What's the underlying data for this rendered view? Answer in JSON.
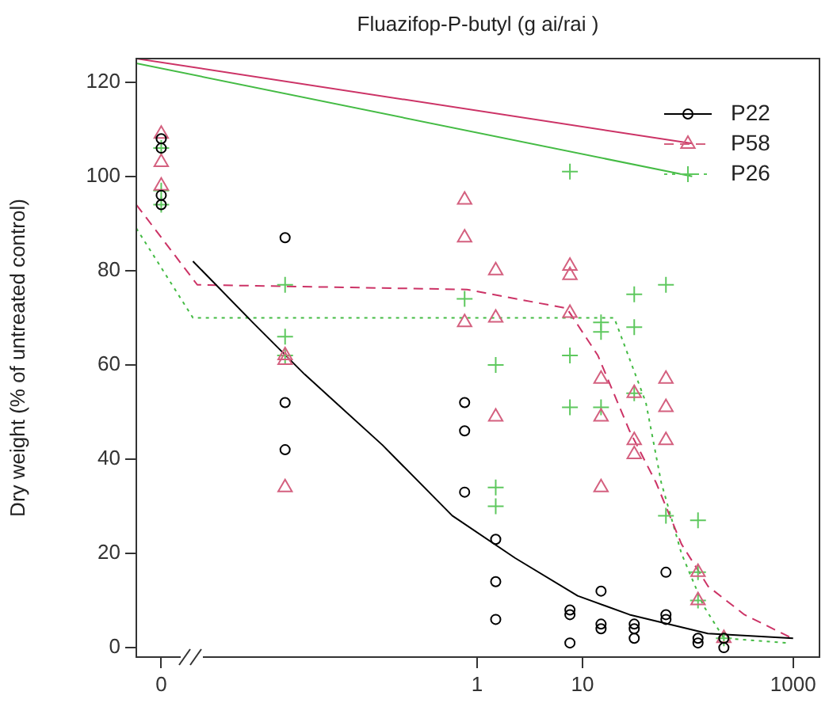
{
  "chart_data": {
    "type": "scatter",
    "title": "Fluazifop-P-butyl (g ai/rai )",
    "ylabel": "Dry weight (% of untreated control)",
    "log": "x",
    "grid": false,
    "legend": "top right",
    "xlim": [
      0.00058,
      1780
    ],
    "xticks": [
      {
        "value": 0.001,
        "label": "0"
      },
      1,
      10,
      1000
    ],
    "ylim": [
      -2,
      125
    ],
    "yticks": [
      0,
      20,
      40,
      60,
      80,
      100,
      120
    ],
    "series": [
      {
        "name": "P22",
        "marker": "circle",
        "line_style": "solid",
        "color": "#000000",
        "x": [
          0.001,
          0.001,
          0.001,
          0.001,
          0.015,
          0.015,
          0.015,
          0.76,
          0.76,
          0.76,
          1.5,
          1.5,
          1.5,
          7.6,
          7.6,
          7.6,
          15,
          15,
          15,
          31,
          31,
          31,
          62,
          62,
          62,
          125,
          125,
          220,
          220
        ],
        "values": [
          108,
          106,
          96,
          94,
          87,
          52,
          42,
          52,
          46,
          33,
          23,
          14,
          6,
          8,
          7,
          1,
          12,
          5,
          4,
          5,
          4,
          2,
          16,
          7,
          6,
          2,
          1,
          2,
          0
        ]
      },
      {
        "name": "P58",
        "marker": "triangle",
        "line_style": "dashed",
        "color": "#d4607f",
        "x": [
          0.001,
          0.001,
          0.001,
          0.015,
          0.015,
          0.015,
          0.76,
          0.76,
          0.76,
          1.5,
          1.5,
          1.5,
          7.6,
          7.6,
          7.6,
          15,
          15,
          15,
          31,
          31,
          31,
          62,
          62,
          62,
          125,
          125,
          220
        ],
        "values": [
          109,
          103,
          98,
          62,
          61,
          34,
          95,
          87,
          69,
          80,
          70,
          49,
          81,
          79,
          71,
          57,
          49,
          34,
          54,
          44,
          41,
          57,
          51,
          44,
          16,
          10,
          2
        ]
      },
      {
        "name": "P26",
        "marker": "cross",
        "line_style": "dotted",
        "color": "#5ec85e",
        "x": [
          0.001,
          0.001,
          0.001,
          0.015,
          0.015,
          0.015,
          0.76,
          1.5,
          1.5,
          1.5,
          7.6,
          7.6,
          7.6,
          15,
          15,
          15,
          31,
          31,
          31,
          62,
          62,
          125,
          125,
          125,
          220
        ],
        "values": [
          106,
          97,
          94,
          77,
          66,
          62,
          74,
          60,
          34,
          30,
          101,
          62,
          51,
          69,
          67,
          51,
          75,
          68,
          54,
          77,
          28,
          27,
          16,
          10,
          2
        ]
      },
      {
        "type": "line",
        "marker": "none",
        "line_style": "solid",
        "color": "#000000",
        "x": [
          0.002,
          0.0074,
          0.023,
          0.126,
          0.58,
          2.3,
          9,
          28,
          155,
          1000
        ],
        "values": [
          82,
          69,
          58,
          43,
          28,
          19,
          11,
          7,
          3,
          2
        ]
      },
      {
        "type": "line",
        "marker": "none",
        "line_style": "dashed",
        "color": "#cc3366",
        "x": [
          0.00058,
          0.0022,
          0.8,
          7.1,
          14,
          28,
          50,
          87,
          156,
          345,
          980
        ],
        "values": [
          94,
          77,
          76,
          72,
          62,
          46,
          35,
          22,
          13,
          7,
          2
        ]
      },
      {
        "type": "line",
        "marker": "none",
        "line_style": "dotted",
        "color": "#44bb44",
        "x": [
          0.00058,
          0.002,
          20,
          40,
          56,
          87,
          140,
          220,
          870
        ],
        "values": [
          89,
          70,
          70,
          52,
          35,
          20,
          9,
          2,
          1
        ]
      },
      {
        "type": "line",
        "marker": "none",
        "line_style": "solid",
        "color": "#cc3366",
        "x": [
          0.00058,
          110
        ],
        "values": [
          125,
          107
        ]
      },
      {
        "type": "line",
        "marker": "none",
        "line_style": "solid",
        "color": "#44bb44",
        "x": [
          0.00058,
          110
        ],
        "values": [
          124,
          100
        ]
      }
    ]
  }
}
